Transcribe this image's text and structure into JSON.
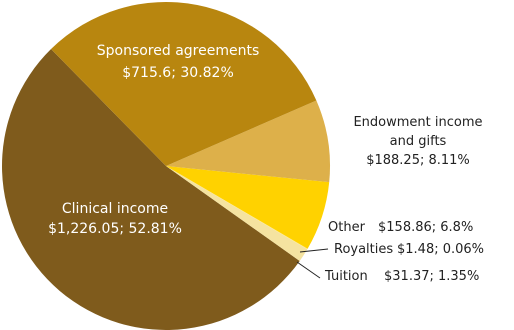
{
  "chart_data": {
    "type": "pie",
    "categories": [
      "Sponsored agreements",
      "Endowment income and gifts",
      "Other",
      "Royalties",
      "Tuition",
      "Clinical income"
    ],
    "values": [
      715.6,
      188.25,
      158.86,
      1.48,
      31.37,
      1226.05
    ],
    "value_labels": [
      "$715.6; 30.82%",
      "$188.25; 8.11%",
      "$158.86; 6.8%",
      "$1.48; 0.06%",
      "$31.37; 1.35%",
      "$1,226.05; 52.81%"
    ],
    "colors": [
      "#b8860f",
      "#ddb04a",
      "#ffd200",
      "#fde98a",
      "#f5e3a0",
      "#7f5b1c"
    ]
  }
}
